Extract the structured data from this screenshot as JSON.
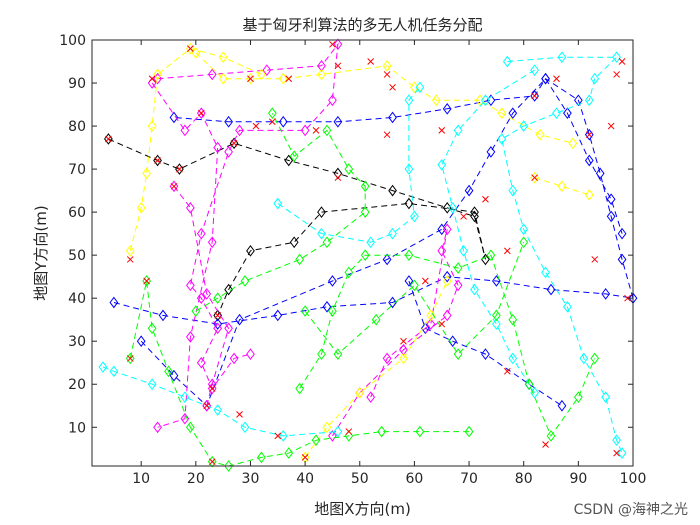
{
  "watermark": "CSDN @海神之光",
  "chart_data": {
    "type": "line",
    "title": "基于匈牙利算法的多无人机任务分配",
    "xlabel": "地图X方向(m)",
    "ylabel": "地图Y方向(m)",
    "xlim": [
      1,
      100
    ],
    "ylim": [
      1,
      100
    ],
    "xticks": [
      "10",
      "20",
      "30",
      "40",
      "50",
      "60",
      "70",
      "80",
      "90",
      "100"
    ],
    "yticks": [
      "10",
      "20",
      "30",
      "40",
      "50",
      "60",
      "70",
      "80",
      "90",
      "100"
    ],
    "grid": false,
    "line_style": "dashed",
    "marker": "diamond",
    "target_marker": "x",
    "target_color": "#ff0000",
    "series": [
      {
        "color": "#000000",
        "points": [
          [
            4,
            77
          ],
          [
            13,
            72
          ],
          [
            17,
            70
          ],
          [
            27,
            76
          ],
          [
            37,
            72
          ],
          [
            46,
            69
          ],
          [
            56,
            65
          ],
          [
            66,
            61
          ],
          [
            71,
            59
          ],
          [
            73,
            49
          ],
          [
            71,
            60
          ],
          [
            59,
            62
          ],
          [
            43,
            60
          ],
          [
            38,
            53
          ],
          [
            30,
            51
          ],
          [
            26,
            42
          ],
          [
            24,
            36
          ]
        ]
      },
      {
        "color": "#0000ff",
        "points": [
          [
            5,
            39
          ],
          [
            14,
            36
          ],
          [
            24,
            34
          ],
          [
            35,
            36
          ],
          [
            44,
            38
          ],
          [
            56,
            39
          ],
          [
            66,
            45
          ],
          [
            75,
            44
          ],
          [
            85,
            42
          ],
          [
            95,
            41
          ],
          [
            100,
            40
          ],
          [
            98,
            49
          ],
          [
            96,
            59
          ],
          [
            94,
            69
          ],
          [
            92,
            78
          ],
          [
            90,
            86
          ],
          [
            84,
            91
          ],
          [
            82,
            87
          ],
          [
            74,
            86
          ],
          [
            66,
            84
          ],
          [
            56,
            82
          ],
          [
            46,
            81
          ],
          [
            36,
            81
          ],
          [
            26,
            81
          ],
          [
            16,
            82
          ]
        ]
      },
      {
        "color": "#0000ff",
        "points": [
          [
            10,
            30
          ],
          [
            16,
            22
          ],
          [
            22,
            15
          ],
          [
            28,
            35
          ],
          [
            45,
            44
          ],
          [
            55,
            49
          ],
          [
            65,
            56
          ],
          [
            70,
            65
          ],
          [
            74,
            74
          ],
          [
            78,
            83
          ],
          [
            84,
            91
          ],
          [
            88,
            83
          ],
          [
            92,
            72
          ],
          [
            96,
            63
          ],
          [
            98,
            55
          ]
        ]
      },
      {
        "color": "#0000ff",
        "points": [
          [
            59,
            44
          ],
          [
            62,
            33
          ],
          [
            67,
            30
          ],
          [
            73,
            27
          ],
          [
            81,
            20
          ],
          [
            87,
            15
          ]
        ]
      },
      {
        "color": "#ff00ff",
        "points": [
          [
            13,
            91
          ],
          [
            23,
            92
          ],
          [
            33,
            93
          ],
          [
            43,
            94
          ],
          [
            46,
            99
          ],
          [
            45,
            86
          ],
          [
            40,
            79
          ],
          [
            28,
            79
          ],
          [
            26,
            74
          ],
          [
            21,
            55
          ],
          [
            19,
            43
          ],
          [
            21,
            40
          ],
          [
            24,
            33
          ],
          [
            21,
            25
          ],
          [
            23,
            19
          ],
          [
            27,
            26
          ],
          [
            30,
            27
          ]
        ]
      },
      {
        "color": "#ff00ff",
        "points": [
          [
            12,
            90
          ],
          [
            18,
            79
          ],
          [
            21,
            83
          ],
          [
            24,
            75
          ],
          [
            23,
            53
          ],
          [
            19,
            31
          ],
          [
            18,
            12
          ],
          [
            13,
            10
          ]
        ]
      },
      {
        "color": "#ff00ff",
        "points": [
          [
            16,
            66
          ],
          [
            19,
            61
          ],
          [
            22,
            41
          ],
          [
            26,
            33
          ],
          [
            23,
            20
          ],
          [
            22,
            15
          ]
        ]
      },
      {
        "color": "#ff00ff",
        "points": [
          [
            45,
            8
          ],
          [
            50,
            18
          ],
          [
            58,
            28
          ],
          [
            66,
            36
          ],
          [
            68,
            43
          ],
          [
            65,
            51
          ],
          [
            66,
            56
          ],
          [
            63,
            34
          ],
          [
            55,
            26
          ],
          [
            52,
            17
          ]
        ]
      },
      {
        "color": "#ffff00",
        "points": [
          [
            20,
            97
          ],
          [
            25,
            91
          ],
          [
            30,
            91
          ],
          [
            36,
            91
          ],
          [
            43,
            92
          ],
          [
            55,
            94
          ],
          [
            60,
            89
          ],
          [
            64,
            86
          ],
          [
            72,
            86
          ],
          [
            76,
            83
          ],
          [
            83,
            78
          ],
          [
            89,
            76
          ]
        ]
      },
      {
        "color": "#ffff00",
        "points": [
          [
            8,
            51
          ],
          [
            10,
            61
          ],
          [
            11,
            69
          ],
          [
            12,
            80
          ],
          [
            13,
            92
          ],
          [
            19,
            98
          ],
          [
            25,
            96
          ],
          [
            32,
            92
          ]
        ]
      },
      {
        "color": "#ffff00",
        "points": [
          [
            82,
            68
          ],
          [
            87,
            66
          ],
          [
            92,
            64
          ]
        ]
      },
      {
        "color": "#ffff00",
        "points": [
          [
            40,
            3
          ],
          [
            44,
            10
          ],
          [
            50,
            18
          ],
          [
            58,
            26
          ],
          [
            63,
            36
          ],
          [
            66,
            44
          ]
        ]
      },
      {
        "color": "#00ffff",
        "points": [
          [
            3,
            24
          ],
          [
            5,
            23
          ],
          [
            12,
            20
          ],
          [
            18,
            17
          ],
          [
            24,
            14
          ],
          [
            29,
            10
          ],
          [
            36,
            8
          ],
          [
            46,
            9
          ]
        ]
      },
      {
        "color": "#00ffff",
        "points": [
          [
            35,
            62
          ],
          [
            43,
            55
          ],
          [
            52,
            53
          ],
          [
            56,
            55
          ],
          [
            60,
            59
          ],
          [
            59,
            70
          ],
          [
            59,
            86
          ],
          [
            61,
            89
          ]
        ]
      },
      {
        "color": "#00ffff",
        "points": [
          [
            77,
            95
          ],
          [
            87,
            96
          ],
          [
            97,
            96
          ],
          [
            93,
            91
          ],
          [
            92,
            86
          ],
          [
            86,
            83
          ],
          [
            80,
            80
          ],
          [
            76,
            77
          ],
          [
            78,
            65
          ],
          [
            80,
            56
          ],
          [
            84,
            46
          ],
          [
            88,
            38
          ],
          [
            91,
            26
          ],
          [
            95,
            17
          ],
          [
            97,
            7
          ],
          [
            98,
            4
          ]
        ]
      },
      {
        "color": "#00ffff",
        "points": [
          [
            82,
            93
          ],
          [
            73,
            86
          ],
          [
            68,
            79
          ],
          [
            65,
            71
          ],
          [
            67,
            61
          ],
          [
            69,
            51
          ],
          [
            71,
            42
          ],
          [
            75,
            34
          ],
          [
            78,
            26
          ],
          [
            82,
            18
          ]
        ]
      },
      {
        "color": "#00ff00",
        "points": [
          [
            8,
            26
          ],
          [
            11,
            44
          ],
          [
            12,
            33
          ],
          [
            15,
            23
          ],
          [
            19,
            10
          ],
          [
            23,
            2
          ],
          [
            26,
            1
          ],
          [
            32,
            3
          ],
          [
            37,
            4
          ],
          [
            42,
            7
          ],
          [
            48,
            8
          ],
          [
            54,
            9
          ],
          [
            61,
            9
          ],
          [
            70,
            9
          ]
        ]
      },
      {
        "color": "#00ff00",
        "points": [
          [
            20,
            37
          ],
          [
            24,
            40
          ],
          [
            29,
            44
          ],
          [
            39,
            49
          ],
          [
            44,
            53
          ],
          [
            51,
            60
          ],
          [
            51,
            66
          ],
          [
            48,
            70
          ],
          [
            44,
            79
          ],
          [
            38,
            73
          ],
          [
            34,
            83
          ]
        ]
      },
      {
        "color": "#00ff00",
        "points": [
          [
            39,
            19
          ],
          [
            43,
            27
          ],
          [
            45,
            37
          ],
          [
            48,
            46
          ],
          [
            51,
            50
          ],
          [
            59,
            50
          ],
          [
            68,
            47
          ],
          [
            74,
            50
          ],
          [
            78,
            35
          ],
          [
            81,
            20
          ],
          [
            85,
            8
          ],
          [
            90,
            17
          ],
          [
            93,
            26
          ]
        ]
      },
      {
        "color": "#00ff00",
        "points": [
          [
            40,
            37
          ],
          [
            46,
            27
          ],
          [
            53,
            35
          ],
          [
            60,
            43
          ],
          [
            68,
            27
          ],
          [
            75,
            36
          ],
          [
            80,
            53
          ]
        ]
      }
    ],
    "targets": [
      [
        4,
        77
      ],
      [
        8,
        26
      ],
      [
        8,
        49
      ],
      [
        12,
        91
      ],
      [
        13,
        72
      ],
      [
        16,
        66
      ],
      [
        17,
        70
      ],
      [
        19,
        98
      ],
      [
        21,
        83
      ],
      [
        22,
        15
      ],
      [
        23,
        19
      ],
      [
        23,
        2
      ],
      [
        24,
        36
      ],
      [
        27,
        76
      ],
      [
        28,
        13
      ],
      [
        30,
        91
      ],
      [
        34,
        81
      ],
      [
        35,
        8
      ],
      [
        37,
        91
      ],
      [
        40,
        3
      ],
      [
        42,
        79
      ],
      [
        45,
        99
      ],
      [
        46,
        94
      ],
      [
        46,
        68
      ],
      [
        48,
        9
      ],
      [
        52,
        95
      ],
      [
        55,
        78
      ],
      [
        55,
        92
      ],
      [
        56,
        89
      ],
      [
        58,
        30
      ],
      [
        62,
        44
      ],
      [
        65,
        79
      ],
      [
        65,
        34
      ],
      [
        69,
        59
      ],
      [
        73,
        63
      ],
      [
        77,
        51
      ],
      [
        77,
        23
      ],
      [
        82,
        68
      ],
      [
        82,
        87
      ],
      [
        84,
        6
      ],
      [
        86,
        91
      ],
      [
        92,
        78
      ],
      [
        93,
        49
      ],
      [
        96,
        80
      ],
      [
        97,
        92
      ],
      [
        98,
        95
      ],
      [
        97,
        4
      ],
      [
        99,
        40
      ],
      [
        11,
        44
      ],
      [
        31,
        80
      ]
    ]
  }
}
